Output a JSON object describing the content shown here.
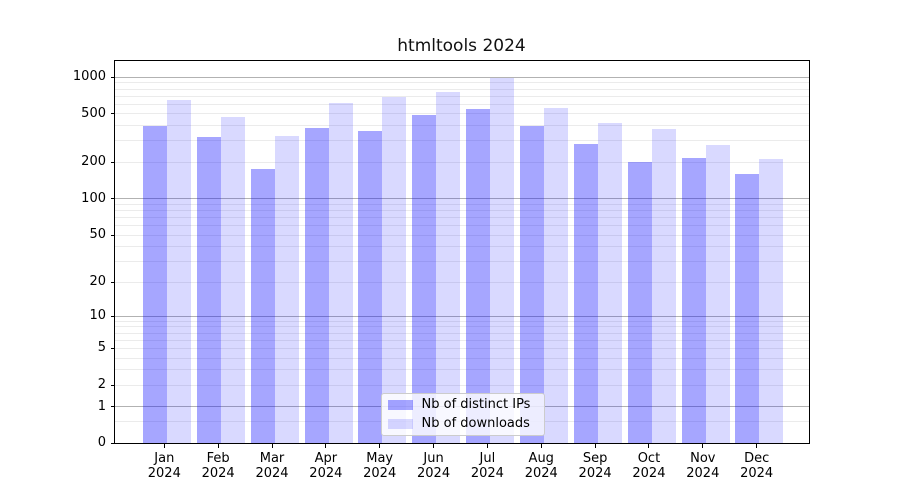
{
  "title": "htmltools 2024",
  "chart_data": {
    "type": "bar",
    "title": "htmltools 2024",
    "categories": [
      "Jan 2024",
      "Feb 2024",
      "Mar 2024",
      "Apr 2024",
      "May 2024",
      "Jun 2024",
      "Jul 2024",
      "Aug 2024",
      "Sep 2024",
      "Oct 2024",
      "Nov 2024",
      "Dec 2024"
    ],
    "series": [
      {
        "name": "Nb of distinct IPs",
        "color": "rgba(0,0,255,0.35)",
        "values": [
          395,
          325,
          175,
          385,
          365,
          490,
          550,
          400,
          282,
          202,
          218,
          160
        ]
      },
      {
        "name": "Nb of downloads",
        "color": "rgba(0,0,255,0.15)",
        "values": [
          650,
          475,
          330,
          620,
          695,
          760,
          980,
          555,
          422,
          375,
          278,
          215
        ]
      }
    ],
    "xlabel": "",
    "ylabel": "",
    "y_axis": {
      "scale": "symlog-log1p",
      "tick_values": [
        0,
        1,
        2,
        5,
        10,
        20,
        50,
        100,
        200,
        500,
        1000
      ],
      "ylim": [
        0,
        1375
      ]
    },
    "grid": {
      "major_lines": [
        1,
        10,
        100,
        1000
      ],
      "minor_lines": [
        0.5,
        2,
        3,
        4,
        5,
        6,
        7,
        8,
        9,
        20,
        30,
        40,
        50,
        60,
        70,
        80,
        90,
        200,
        300,
        400,
        500,
        600,
        700,
        800,
        900
      ]
    },
    "legend": {
      "position": "lower center",
      "entries": [
        "Nb of distinct IPs",
        "Nb of downloads"
      ]
    }
  },
  "colors": {
    "bar_distinct_ips": "rgba(0,0,255,0.35)",
    "bar_downloads": "rgba(0,0,255,0.15)",
    "grid_major": "#b2b2b2",
    "grid_minor": "#ebebeb",
    "axis": "#000000",
    "legend_border": "#cccccc",
    "legend_bg": "rgba(255,255,255,0.8)"
  }
}
